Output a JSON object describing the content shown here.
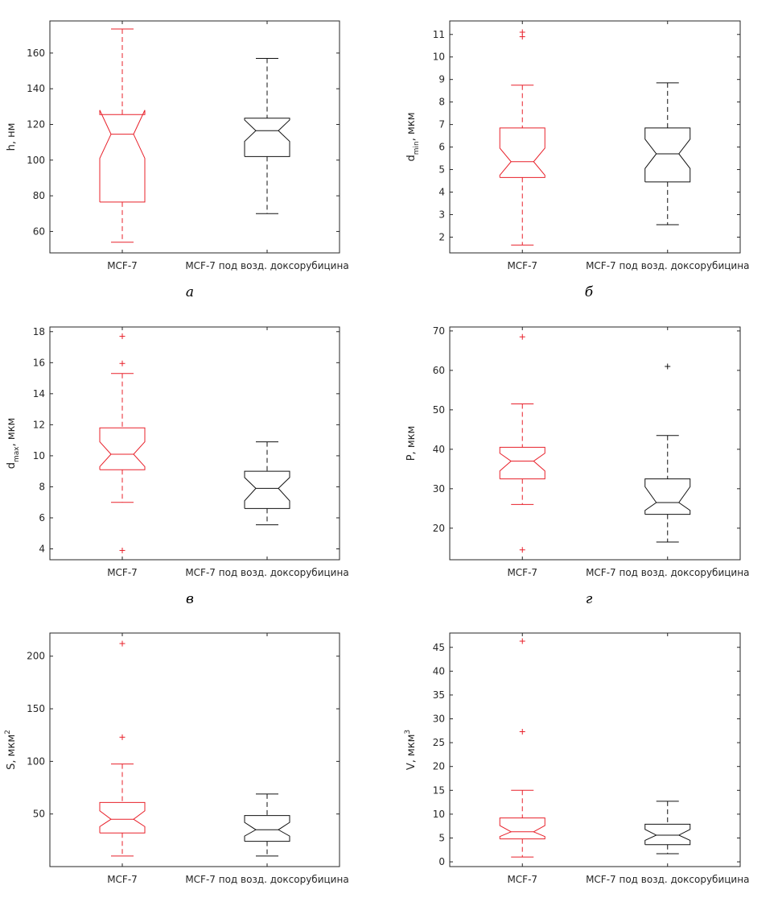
{
  "figure": {
    "categories": [
      "MCF-7",
      "MCF-7 под возд. доксорубицина"
    ],
    "colors": {
      "group1": "#e8202a",
      "group2": "#111111",
      "axes": "#262626"
    }
  },
  "chart_data": [
    {
      "type": "box",
      "panel_label": "а",
      "ylabel": {
        "main": "h, нм",
        "sub": ""
      },
      "categories": [
        "MCF-7",
        "MCF-7 под возд. доксорубицина"
      ],
      "ylim": [
        48,
        178
      ],
      "yticks": [
        60,
        80,
        100,
        120,
        140,
        160
      ],
      "series": [
        {
          "color": "#e8202a",
          "whisker_low": 54,
          "q1": 76.5,
          "median": 114.5,
          "q3": 125.5,
          "whisker_high": 173.5,
          "notch_low": 101,
          "notch_high": 128,
          "outliers": []
        },
        {
          "color": "#111111",
          "whisker_low": 70,
          "q1": 102,
          "median": 116.5,
          "q3": 123.5,
          "whisker_high": 157,
          "notch_low": 110.5,
          "notch_high": 122.5,
          "outliers": []
        }
      ]
    },
    {
      "type": "box",
      "panel_label": "б",
      "ylabel": {
        "main": "d",
        "sub": "min",
        "tail": ", мкм"
      },
      "categories": [
        "MCF-7",
        "MCF-7 под возд. доксорубицина"
      ],
      "ylim": [
        1.3,
        11.6
      ],
      "yticks": [
        2,
        3,
        4,
        5,
        6,
        7,
        8,
        9,
        10,
        11
      ],
      "series": [
        {
          "color": "#e8202a",
          "whisker_low": 1.65,
          "q1": 4.65,
          "median": 5.35,
          "q3": 6.85,
          "whisker_high": 8.75,
          "notch_low": 4.75,
          "notch_high": 5.95,
          "outliers": [
            10.9,
            11.1
          ]
        },
        {
          "color": "#111111",
          "whisker_low": 2.55,
          "q1": 4.45,
          "median": 5.7,
          "q3": 6.85,
          "whisker_high": 8.85,
          "notch_low": 5.05,
          "notch_high": 6.35,
          "outliers": []
        }
      ]
    },
    {
      "type": "box",
      "panel_label": "в",
      "ylabel": {
        "main": "d",
        "sub": "max",
        "tail": ", мкм"
      },
      "categories": [
        "MCF-7",
        "MCF-7 под возд. доксорубицина"
      ],
      "ylim": [
        3.3,
        18.3
      ],
      "yticks": [
        4,
        6,
        8,
        10,
        12,
        14,
        16,
        18
      ],
      "series": [
        {
          "color": "#e8202a",
          "whisker_low": 7.0,
          "q1": 9.1,
          "median": 10.1,
          "q3": 11.8,
          "whisker_high": 15.3,
          "notch_low": 9.3,
          "notch_high": 10.9,
          "outliers": [
            3.9,
            15.95,
            17.7
          ]
        },
        {
          "color": "#111111",
          "whisker_low": 5.55,
          "q1": 6.6,
          "median": 7.9,
          "q3": 9.0,
          "whisker_high": 10.9,
          "notch_low": 7.1,
          "notch_high": 8.6,
          "outliers": []
        }
      ]
    },
    {
      "type": "box",
      "panel_label": "г",
      "ylabel": {
        "main": "P, мкм",
        "sub": ""
      },
      "categories": [
        "MCF-7",
        "MCF-7 под возд. доксорубицина"
      ],
      "ylim": [
        12,
        71
      ],
      "yticks": [
        20,
        30,
        40,
        50,
        60,
        70
      ],
      "series": [
        {
          "color": "#e8202a",
          "whisker_low": 26,
          "q1": 32.5,
          "median": 37,
          "q3": 40.5,
          "whisker_high": 51.5,
          "notch_low": 34.5,
          "notch_high": 39,
          "outliers": [
            14.5,
            68.5
          ]
        },
        {
          "color": "#111111",
          "whisker_low": 16.5,
          "q1": 23.5,
          "median": 26.5,
          "q3": 32.5,
          "whisker_high": 43.5,
          "notch_low": 24.5,
          "notch_high": 30.5,
          "outliers": [
            61
          ]
        }
      ]
    },
    {
      "type": "box",
      "panel_label": "",
      "ylabel": {
        "main": "S, мкм",
        "sup": "2"
      },
      "categories": [
        "MCF-7",
        "MCF-7 под возд. доксорубицина"
      ],
      "ylim": [
        0,
        222
      ],
      "yticks": [
        50,
        100,
        150,
        200
      ],
      "series": [
        {
          "color": "#e8202a",
          "whisker_low": 10,
          "q1": 32,
          "median": 45,
          "q3": 61,
          "whisker_high": 97.5,
          "notch_low": 38,
          "notch_high": 53,
          "outliers": [
            123,
            212
          ]
        },
        {
          "color": "#111111",
          "whisker_low": 10,
          "q1": 24,
          "median": 35,
          "q3": 48.5,
          "whisker_high": 69,
          "notch_low": 29,
          "notch_high": 42,
          "outliers": []
        }
      ]
    },
    {
      "type": "box",
      "panel_label": "",
      "ylabel": {
        "main": "V, мкм",
        "sup": "3"
      },
      "categories": [
        "MCF-7",
        "MCF-7 под возд. доксорубицина"
      ],
      "ylim": [
        -1,
        48
      ],
      "yticks": [
        0,
        5,
        10,
        15,
        20,
        25,
        30,
        35,
        40,
        45
      ],
      "series": [
        {
          "color": "#e8202a",
          "whisker_low": 1.0,
          "q1": 4.8,
          "median": 6.3,
          "q3": 9.2,
          "whisker_high": 15,
          "notch_low": 5.3,
          "notch_high": 7.6,
          "outliers": [
            27.3,
            46.3
          ]
        },
        {
          "color": "#111111",
          "whisker_low": 1.7,
          "q1": 3.6,
          "median": 5.6,
          "q3": 7.9,
          "whisker_high": 12.7,
          "notch_low": 4.5,
          "notch_high": 6.8,
          "outliers": []
        }
      ]
    }
  ]
}
